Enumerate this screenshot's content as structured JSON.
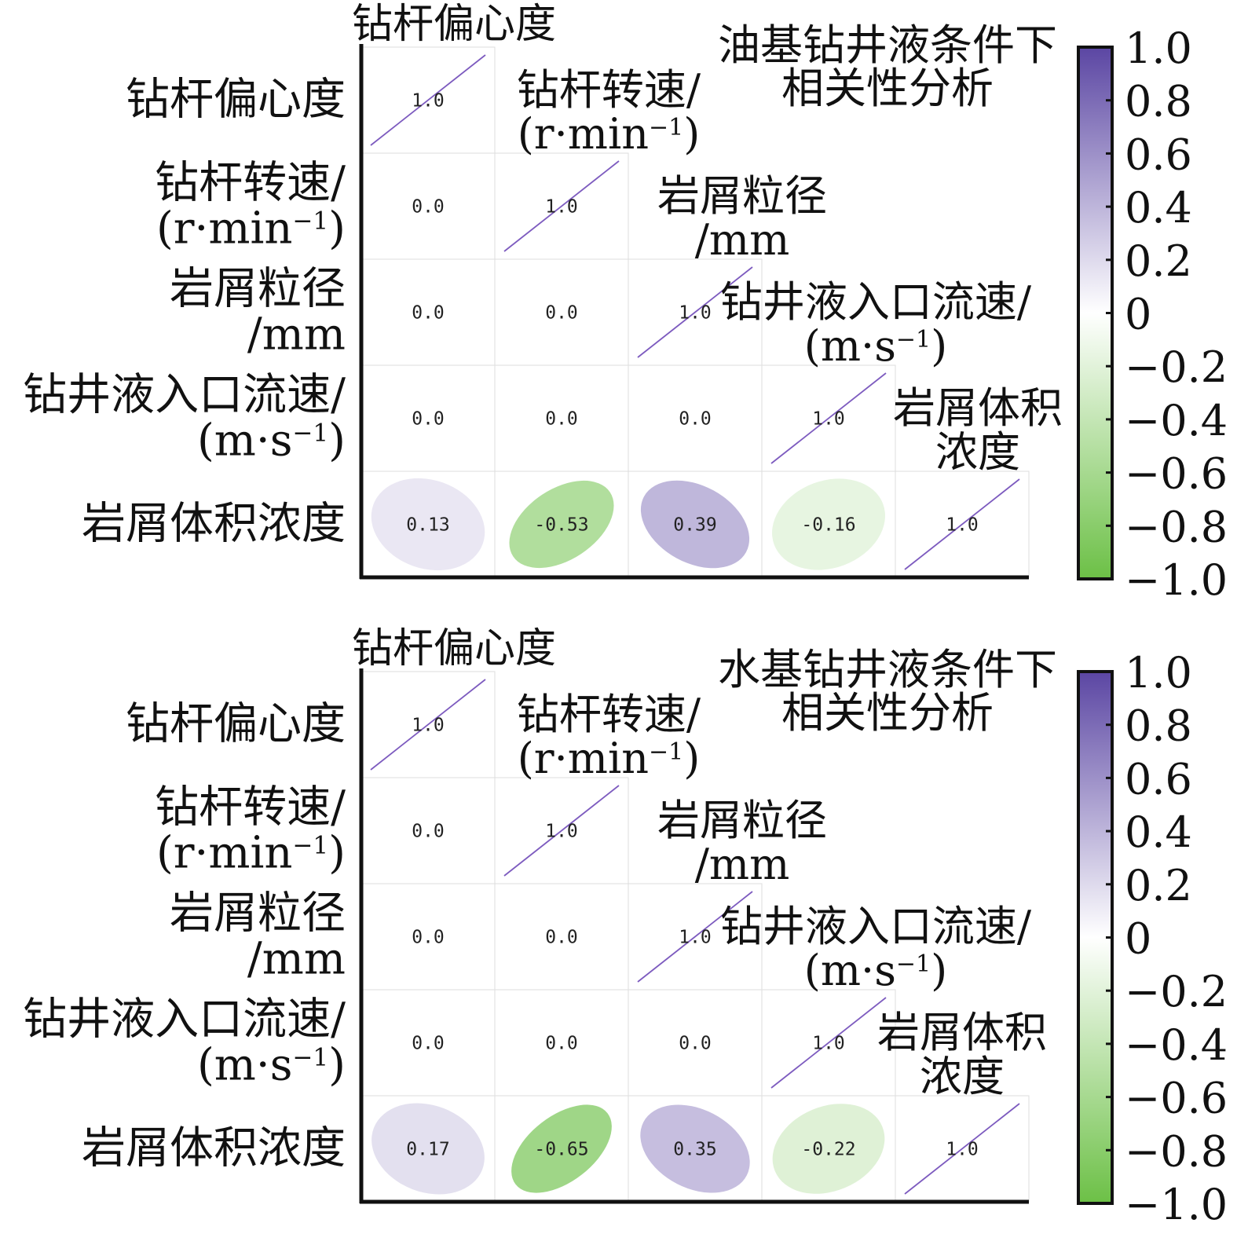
{
  "chart_data": [
    {
      "type": "heatmap",
      "title": [
        "油基钻井液条件下",
        "相关性分析"
      ],
      "variables": [
        [
          "钻杆偏心度"
        ],
        [
          "钻杆转速/",
          "(r·min⁻¹)"
        ],
        [
          "岩屑粒径",
          "/mm"
        ],
        [
          "钻井液入口流速/",
          "(m·s⁻¹)"
        ],
        [
          "岩屑体积浓度"
        ]
      ],
      "diagonal_labels": [
        [
          "钻杆偏心度"
        ],
        [
          "钻杆转速/",
          "(r·min⁻¹)"
        ],
        [
          "岩屑粒径",
          "/mm"
        ],
        [
          "钻井液入口流速/",
          "(m·s⁻¹)"
        ],
        [
          "岩屑体积",
          "浓度"
        ]
      ],
      "matrix": [
        [
          1.0
        ],
        [
          0.0,
          1.0
        ],
        [
          0.0,
          0.0,
          1.0
        ],
        [
          0.0,
          0.0,
          0.0,
          1.0
        ],
        [
          0.13,
          -0.53,
          0.39,
          -0.16,
          1.0
        ]
      ],
      "display_values": [
        [
          "1.0"
        ],
        [
          "0.0",
          "1.0"
        ],
        [
          "0.0",
          "0.0",
          "1.0"
        ],
        [
          "0.0",
          "0.0",
          "0.0",
          "1.0"
        ],
        [
          "0.13",
          "-0.53",
          "0.39",
          "-0.16",
          "1.0"
        ]
      ],
      "colorbar": {
        "range": [
          -1.0,
          1.0
        ],
        "ticks": [
          "1.0",
          "0.8",
          "0.6",
          "0.4",
          "0.2",
          "0",
          "−0.2",
          "−0.4",
          "−0.6",
          "−0.8",
          "−1.0"
        ],
        "colors": {
          "high": "#5b46a3",
          "mid": "#ffffff",
          "low": "#6cc046"
        }
      }
    },
    {
      "type": "heatmap",
      "title": [
        "水基钻井液条件下",
        "相关性分析"
      ],
      "variables": [
        [
          "钻杆偏心度"
        ],
        [
          "钻杆转速/",
          "(r·min⁻¹)"
        ],
        [
          "岩屑粒径",
          "/mm"
        ],
        [
          "钻井液入口流速/",
          "(m·s⁻¹)"
        ],
        [
          "岩屑体积浓度"
        ]
      ],
      "diagonal_labels": [
        [
          "钻杆偏心度"
        ],
        [
          "钻杆转速/",
          "(r·min⁻¹)"
        ],
        [
          "岩屑粒径",
          "/mm"
        ],
        [
          "钻井液入口流速/",
          "(m·s⁻¹)"
        ],
        [
          "岩屑体积",
          "浓度"
        ]
      ],
      "matrix": [
        [
          1.0
        ],
        [
          0.0,
          1.0
        ],
        [
          0.0,
          0.0,
          1.0
        ],
        [
          0.0,
          0.0,
          0.0,
          1.0
        ],
        [
          0.17,
          -0.65,
          0.35,
          -0.22,
          1.0
        ]
      ],
      "display_values": [
        [
          "1.0"
        ],
        [
          "0.0",
          "1.0"
        ],
        [
          "0.0",
          "0.0",
          "1.0"
        ],
        [
          "0.0",
          "0.0",
          "0.0",
          "1.0"
        ],
        [
          "0.17",
          "-0.65",
          "0.35",
          "-0.22",
          "1.0"
        ]
      ],
      "colorbar": {
        "range": [
          -1.0,
          1.0
        ],
        "ticks": [
          "1.0",
          "0.8",
          "0.6",
          "0.4",
          "0.2",
          "0",
          "−0.2",
          "−0.4",
          "−0.6",
          "−0.8",
          "−1.0"
        ],
        "colors": {
          "high": "#5b46a3",
          "mid": "#ffffff",
          "low": "#6cc046"
        }
      }
    }
  ]
}
